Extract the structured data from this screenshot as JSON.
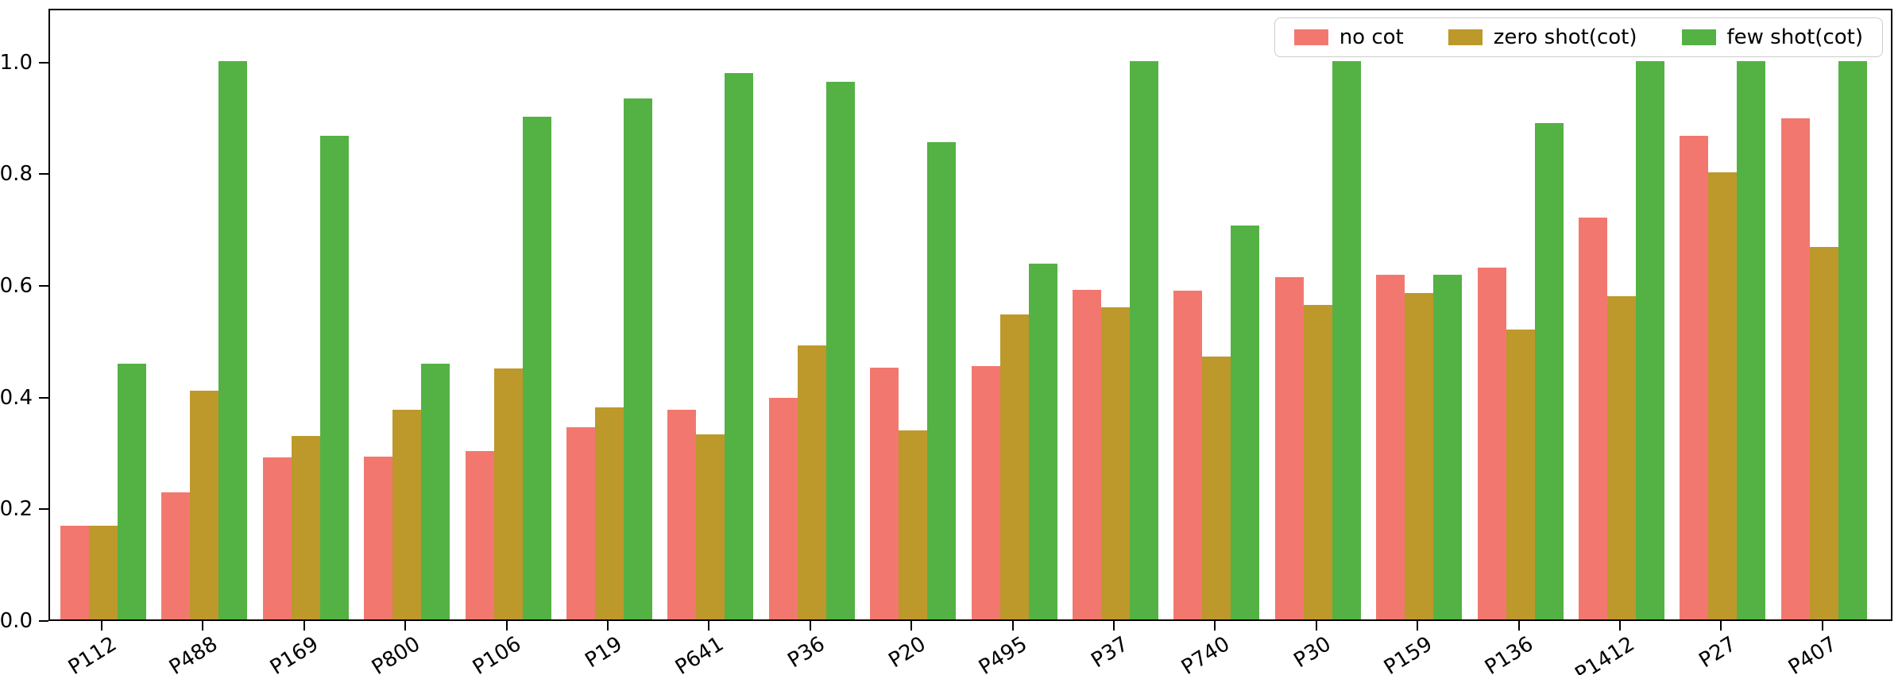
{
  "chart_data": {
    "type": "bar",
    "title": "",
    "xlabel": "",
    "ylabel": "",
    "grid": false,
    "legend_position": "upper right",
    "x_tick_rotation": 32,
    "ylim": [
      0,
      1.096
    ],
    "yticks": [
      0.0,
      0.2,
      0.4,
      0.6,
      0.8,
      1.0
    ],
    "categories": [
      "P112",
      "P488",
      "P169",
      "P800",
      "P106",
      "P19",
      "P641",
      "P36",
      "P20",
      "P495",
      "P37",
      "P740",
      "P30",
      "P159",
      "P136",
      "P1412",
      "P27",
      "P407"
    ],
    "series": [
      {
        "name": "no cot",
        "color": "#F2786F",
        "values": [
          0.168,
          0.228,
          0.29,
          0.292,
          0.301,
          0.344,
          0.375,
          0.396,
          0.451,
          0.454,
          0.59,
          0.589,
          0.613,
          0.617,
          0.63,
          0.72,
          0.866,
          0.897
        ]
      },
      {
        "name": "zero shot(cot)",
        "color": "#BD982B",
        "values": [
          0.168,
          0.409,
          0.329,
          0.375,
          0.449,
          0.379,
          0.331,
          0.49,
          0.339,
          0.546,
          0.559,
          0.47,
          0.563,
          0.584,
          0.519,
          0.579,
          0.8,
          0.667
        ]
      },
      {
        "name": "few shot(cot)",
        "color": "#54B144",
        "values": [
          0.458,
          1.0,
          0.866,
          0.458,
          0.9,
          0.932,
          0.978,
          0.962,
          0.854,
          0.637,
          1.0,
          0.705,
          1.0,
          0.617,
          0.888,
          1.0,
          1.0,
          1.0
        ]
      }
    ],
    "axis_color": "#000000",
    "legend_border_color": "#cccccc"
  }
}
